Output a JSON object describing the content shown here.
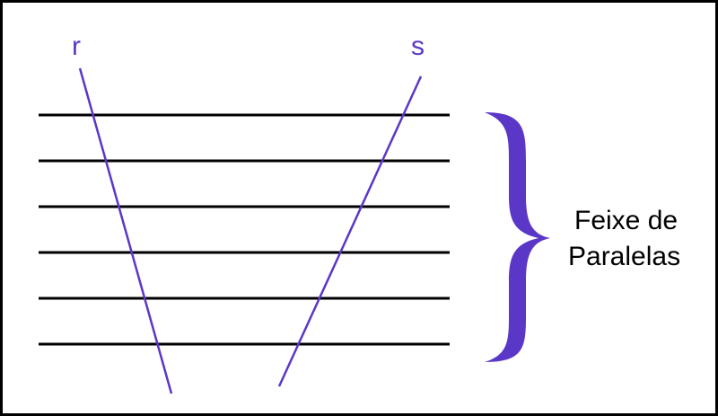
{
  "diagram": {
    "transversal_r_label": "r",
    "transversal_s_label": "s",
    "caption_line1": "Feixe de",
    "caption_line2": "Paralelas",
    "parallel_line_count": 6,
    "colors": {
      "transversal": "#5b37c8",
      "parallel": "#000000",
      "brace": "#5b37c8",
      "caption": "#000000",
      "border": "#000000"
    }
  }
}
